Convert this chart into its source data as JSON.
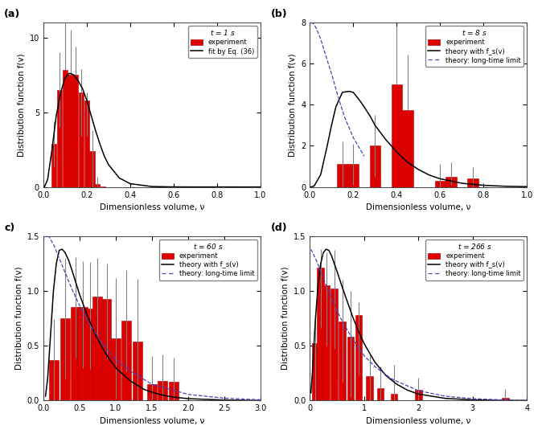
{
  "panels": [
    {
      "label": "(a)",
      "time_label": "t = 1 s",
      "xlim": [
        0,
        1.0
      ],
      "ylim": [
        0,
        11
      ],
      "yticks": [
        0,
        5,
        10
      ],
      "xticks": [
        0.0,
        0.2,
        0.4,
        0.6,
        0.8,
        1.0
      ],
      "bar_centers": [
        0.05,
        0.075,
        0.1,
        0.125,
        0.15,
        0.175,
        0.2,
        0.225,
        0.25,
        0.275
      ],
      "bar_heights": [
        2.9,
        6.5,
        7.8,
        7.5,
        7.5,
        6.3,
        5.8,
        2.4,
        0.18,
        0.05
      ],
      "bar_errors_lo": [
        1.5,
        2.5,
        0.0,
        0.0,
        0.0,
        2.9,
        2.4,
        2.4,
        0.18,
        0.0
      ],
      "bar_errors_hi": [
        1.5,
        2.5,
        4.5,
        3.0,
        1.9,
        1.6,
        0.5,
        1.4,
        0.5,
        0.0
      ],
      "bar_width": 0.023,
      "curve_x": [
        0.005,
        0.02,
        0.04,
        0.06,
        0.08,
        0.1,
        0.12,
        0.14,
        0.16,
        0.18,
        0.2,
        0.22,
        0.24,
        0.26,
        0.28,
        0.3,
        0.35,
        0.4,
        0.5,
        0.6,
        0.7,
        1.0
      ],
      "curve_y": [
        0.0,
        0.5,
        2.5,
        4.8,
        6.3,
        7.3,
        7.6,
        7.5,
        7.1,
        6.6,
        5.8,
        4.8,
        3.8,
        2.9,
        2.1,
        1.5,
        0.6,
        0.22,
        0.03,
        0.005,
        0.001,
        0.0
      ],
      "has_dashed": false,
      "legend_entries": [
        "experiment",
        "fit by Eq. (36)"
      ],
      "legend_styles": [
        "bar",
        "line_solid"
      ],
      "ylabel": "Distribution function f(v)"
    },
    {
      "label": "(b)",
      "time_label": "t = 8 s",
      "xlim": [
        0,
        1.0
      ],
      "ylim": [
        0,
        8
      ],
      "yticks": [
        0,
        2,
        4,
        6,
        8
      ],
      "xticks": [
        0.0,
        0.2,
        0.4,
        0.6,
        0.8,
        1.0
      ],
      "bar_centers": [
        0.15,
        0.2,
        0.3,
        0.4,
        0.45,
        0.6,
        0.65,
        0.75
      ],
      "bar_heights": [
        1.1,
        1.1,
        2.0,
        5.0,
        3.75,
        0.3,
        0.5,
        0.4
      ],
      "bar_errors_lo": [
        1.1,
        1.0,
        1.5,
        0.0,
        0.0,
        0.3,
        0.4,
        0.4
      ],
      "bar_errors_hi": [
        1.1,
        1.0,
        1.5,
        2.8,
        2.7,
        0.8,
        0.7,
        0.55
      ],
      "bar_width": 0.05,
      "curve_x": [
        0.005,
        0.02,
        0.05,
        0.08,
        0.1,
        0.12,
        0.15,
        0.18,
        0.2,
        0.23,
        0.25,
        0.28,
        0.3,
        0.35,
        0.4,
        0.45,
        0.5,
        0.55,
        0.6,
        0.7,
        0.8,
        0.9,
        1.0
      ],
      "curve_y": [
        0.0,
        0.05,
        0.6,
        2.0,
        3.0,
        3.9,
        4.6,
        4.65,
        4.6,
        4.2,
        3.9,
        3.4,
        3.0,
        2.3,
        1.7,
        1.2,
        0.85,
        0.58,
        0.4,
        0.18,
        0.08,
        0.035,
        0.015
      ],
      "dashed_x": [
        0.005,
        0.01,
        0.02,
        0.03,
        0.05,
        0.07,
        0.1,
        0.13,
        0.16,
        0.2,
        0.25
      ],
      "dashed_y": [
        8.0,
        8.0,
        7.9,
        7.7,
        7.2,
        6.5,
        5.5,
        4.4,
        3.4,
        2.4,
        1.5
      ],
      "has_dashed": true,
      "legend_entries": [
        "experiment",
        "theory with f_s(v)",
        "theory: long-time limit"
      ],
      "legend_styles": [
        "bar",
        "line_solid",
        "line_dashed"
      ],
      "ylabel": "Distribution function f(v)"
    },
    {
      "label": "c)",
      "time_label": "t = 60 s",
      "xlim": [
        0,
        3.0
      ],
      "ylim": [
        0,
        1.5
      ],
      "yticks": [
        0.0,
        0.5,
        1.0,
        1.5
      ],
      "xticks": [
        0.0,
        0.5,
        1.0,
        1.5,
        2.0,
        2.5,
        3.0
      ],
      "bar_centers": [
        0.15,
        0.3,
        0.45,
        0.55,
        0.65,
        0.75,
        0.875,
        1.0,
        1.15,
        1.3,
        1.5,
        1.65,
        1.8
      ],
      "bar_heights": [
        0.37,
        0.75,
        0.85,
        0.85,
        0.84,
        0.95,
        0.93,
        0.57,
        0.73,
        0.54,
        0.15,
        0.18,
        0.17
      ],
      "bar_errors_lo": [
        0.37,
        0.55,
        0.46,
        0.55,
        0.55,
        0.35,
        0.55,
        0.55,
        0.46,
        0.54,
        0.15,
        0.18,
        0.17
      ],
      "bar_errors_hi": [
        0.37,
        0.55,
        0.46,
        0.42,
        0.42,
        0.35,
        0.32,
        0.55,
        0.46,
        0.57,
        0.26,
        0.24,
        0.22
      ],
      "bar_width": 0.13,
      "curve_x": [
        0.03,
        0.06,
        0.1,
        0.14,
        0.18,
        0.22,
        0.26,
        0.3,
        0.35,
        0.4,
        0.5,
        0.6,
        0.7,
        0.8,
        0.9,
        1.0,
        1.2,
        1.4,
        1.6,
        1.8,
        2.0,
        2.5,
        3.0
      ],
      "curve_y": [
        0.04,
        0.2,
        0.6,
        1.0,
        1.25,
        1.37,
        1.38,
        1.35,
        1.28,
        1.18,
        0.97,
        0.79,
        0.63,
        0.5,
        0.39,
        0.3,
        0.18,
        0.1,
        0.057,
        0.032,
        0.018,
        0.005,
        0.001
      ],
      "dashed_x": [
        0.03,
        0.06,
        0.1,
        0.15,
        0.2,
        0.25,
        0.3,
        0.4,
        0.5,
        0.6,
        0.8,
        1.0,
        1.2,
        1.5,
        2.0,
        2.5,
        3.0
      ],
      "dashed_y": [
        1.55,
        1.52,
        1.47,
        1.41,
        1.33,
        1.25,
        1.17,
        1.01,
        0.87,
        0.74,
        0.53,
        0.38,
        0.27,
        0.15,
        0.057,
        0.022,
        0.008
      ],
      "has_dashed": true,
      "legend_entries": [
        "experiment",
        "theory with f_s(v)",
        "theory: long-time limit"
      ],
      "legend_styles": [
        "bar",
        "line_solid",
        "line_dashed"
      ],
      "ylabel": "Distribution function f(v)"
    },
    {
      "label": "(d)",
      "time_label": "t = 266 s",
      "xlim": [
        0,
        4.0
      ],
      "ylim": [
        0,
        1.5
      ],
      "yticks": [
        0.0,
        0.5,
        1.0,
        1.5
      ],
      "xticks": [
        0.0,
        1.0,
        2.0,
        3.0,
        4.0
      ],
      "bar_centers": [
        0.1,
        0.2,
        0.3,
        0.45,
        0.6,
        0.75,
        0.9,
        1.1,
        1.3,
        1.55,
        2.0,
        3.6
      ],
      "bar_heights": [
        0.52,
        1.21,
        1.05,
        1.02,
        0.72,
        0.58,
        0.78,
        0.22,
        0.11,
        0.065,
        0.1,
        0.025
      ],
      "bar_errors_lo": [
        0.52,
        0.55,
        0.55,
        0.55,
        0.55,
        0.55,
        0.55,
        0.22,
        0.11,
        0.065,
        0.1,
        0.025
      ],
      "bar_errors_hi": [
        0.25,
        0.17,
        0.3,
        0.35,
        0.38,
        0.42,
        0.12,
        0.2,
        0.2,
        0.26,
        0.11,
        0.08
      ],
      "bar_width": 0.13,
      "curve_x": [
        0.02,
        0.05,
        0.1,
        0.15,
        0.2,
        0.25,
        0.3,
        0.35,
        0.4,
        0.5,
        0.6,
        0.7,
        0.8,
        0.9,
        1.0,
        1.2,
        1.4,
        1.6,
        1.8,
        2.0,
        2.5,
        3.0,
        3.5,
        4.0
      ],
      "curve_y": [
        0.07,
        0.28,
        0.72,
        1.05,
        1.25,
        1.35,
        1.38,
        1.37,
        1.32,
        1.18,
        1.03,
        0.89,
        0.75,
        0.63,
        0.52,
        0.35,
        0.23,
        0.15,
        0.095,
        0.06,
        0.02,
        0.007,
        0.002,
        0.0005
      ],
      "dashed_x": [
        0.02,
        0.05,
        0.1,
        0.15,
        0.2,
        0.3,
        0.4,
        0.5,
        0.6,
        0.8,
        1.0,
        1.2,
        1.5,
        2.0,
        2.5,
        3.0,
        3.5,
        4.0
      ],
      "dashed_y": [
        1.38,
        1.35,
        1.3,
        1.24,
        1.18,
        1.05,
        0.93,
        0.82,
        0.72,
        0.55,
        0.41,
        0.31,
        0.2,
        0.09,
        0.04,
        0.018,
        0.008,
        0.003
      ],
      "has_dashed": true,
      "legend_entries": [
        "experiment",
        "theory with f_s(v)",
        "theory: long-time limit"
      ],
      "legend_styles": [
        "bar",
        "line_solid",
        "line_dashed"
      ],
      "ylabel": "Distribution function f(v)"
    }
  ],
  "bar_color": "#dd0000",
  "bar_edge_color": "#bb0000",
  "line_color": "#000000",
  "dashed_color": "#4444bb",
  "background_color": "#ffffff",
  "xlabel": "Dimensionless volume, ν",
  "fig_bgcolor": "#ffffff"
}
